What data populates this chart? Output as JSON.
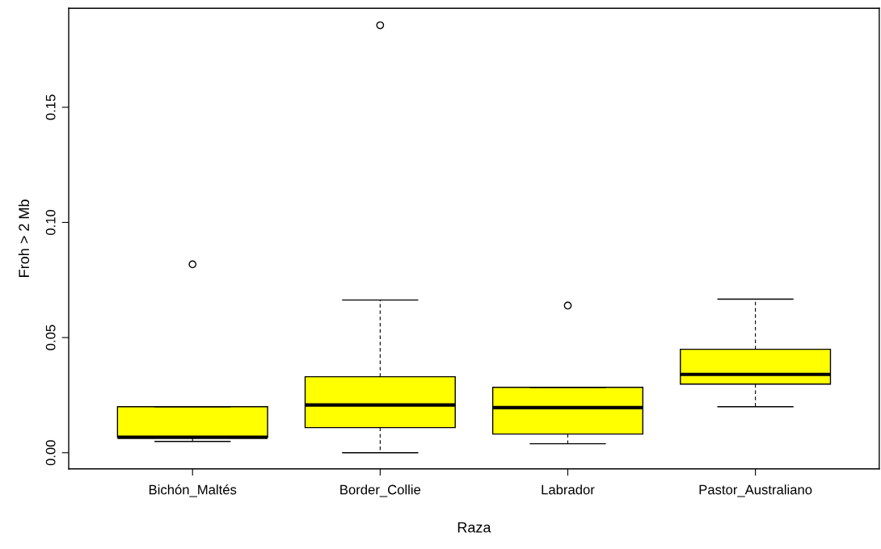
{
  "chart_data": {
    "type": "box",
    "xlabel": "Raza",
    "ylabel": "Froh > 2 Mb",
    "categories": [
      "Bichón_Maltés",
      "Border_Collie",
      "Labrador",
      "Pastor_Australiano"
    ],
    "color": "#ffff00",
    "boxes": [
      {
        "low": 0.0049,
        "q1": 0.0067,
        "median": 0.0067,
        "q3": 0.02,
        "high": 0.02,
        "outliers": [
          0.0818
        ]
      },
      {
        "low": 0.0,
        "q1": 0.0109,
        "median": 0.0207,
        "q3": 0.033,
        "high": 0.0663,
        "outliers": [
          0.1856
        ]
      },
      {
        "low": 0.0039,
        "q1": 0.0081,
        "median": 0.0196,
        "q3": 0.0284,
        "high": 0.0284,
        "outliers": [
          0.0639
        ]
      },
      {
        "low": 0.02,
        "q1": 0.0298,
        "median": 0.034,
        "q3": 0.0449,
        "high": 0.0667
      }
    ],
    "ylim": [
      -0.007,
      0.193
    ],
    "yticks": [
      {
        "value": 0,
        "label": "0.00"
      },
      {
        "value": 0.05,
        "label": "0.05"
      },
      {
        "value": 0.1,
        "label": "0.10"
      },
      {
        "value": 0.15,
        "label": "0.15"
      }
    ],
    "grid": false
  }
}
